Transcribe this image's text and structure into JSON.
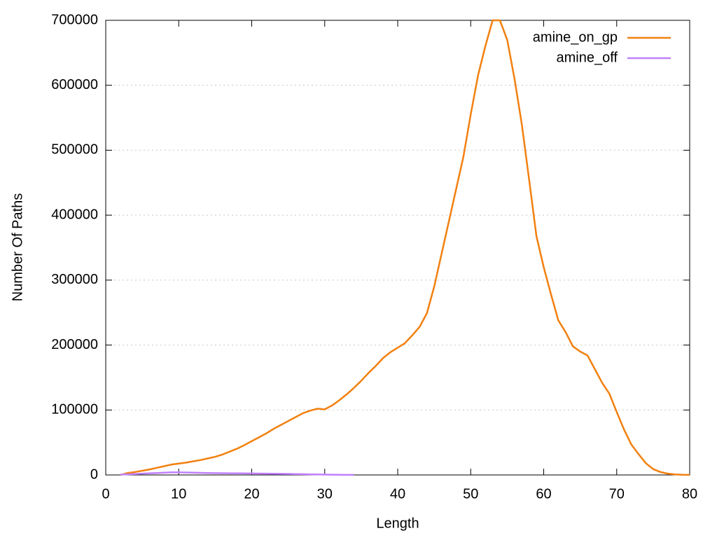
{
  "chart_data": {
    "type": "line",
    "x_label": "Length",
    "y_label": "Number Of Paths",
    "xlim": [
      0,
      80
    ],
    "xticks": [
      0,
      10,
      20,
      30,
      40,
      50,
      60,
      70,
      80
    ],
    "ylim": [
      0,
      700000
    ],
    "yticks": [
      0,
      100000,
      200000,
      300000,
      400000,
      500000,
      600000,
      700000
    ],
    "grid": true,
    "legend": "top-right",
    "series": [
      {
        "name": "amine_on_gp",
        "color": "#f28010",
        "x": [
          2,
          3,
          4,
          5,
          6,
          7,
          8,
          9,
          10,
          11,
          12,
          13,
          14,
          15,
          16,
          17,
          18,
          19,
          20,
          21,
          22,
          23,
          24,
          25,
          26,
          27,
          28,
          29,
          30,
          31,
          32,
          33,
          34,
          35,
          36,
          37,
          38,
          39,
          40,
          41,
          42,
          43,
          44,
          45,
          46,
          47,
          48,
          49,
          50,
          51,
          52,
          53,
          54,
          55,
          56,
          57,
          58,
          59,
          60,
          61,
          62,
          63,
          64,
          65,
          66,
          67,
          68,
          69,
          70,
          71,
          72,
          73,
          74,
          75,
          76,
          77,
          78,
          79,
          80
        ],
        "values": [
          0,
          3000,
          4500,
          6500,
          8500,
          11000,
          13500,
          16000,
          17500,
          19000,
          21000,
          23000,
          25500,
          28000,
          31500,
          36000,
          40500,
          46000,
          52000,
          58000,
          64000,
          71000,
          77000,
          83000,
          89000,
          95000,
          99000,
          102000,
          101000,
          107000,
          115000,
          124000,
          134000,
          145000,
          157000,
          168000,
          180000,
          189000,
          196000,
          203000,
          215000,
          228000,
          249000,
          290000,
          340000,
          390000,
          440000,
          490000,
          555000,
          615000,
          660000,
          700000,
          700000,
          670000,
          610000,
          540000,
          455000,
          368000,
          320000,
          278000,
          238000,
          220000,
          198000,
          190000,
          184000,
          163000,
          142000,
          125000,
          97000,
          70000,
          47000,
          32000,
          18000,
          9000,
          4500,
          2000,
          800,
          300,
          100
        ]
      },
      {
        "name": "amine_off",
        "color": "#c080ff",
        "x": [
          2,
          3,
          4,
          5,
          6,
          7,
          8,
          9,
          10,
          11,
          12,
          13,
          14,
          15,
          16,
          17,
          18,
          19,
          20,
          21,
          22,
          23,
          24,
          25,
          26,
          27,
          28,
          29,
          30,
          31,
          32,
          33,
          34
        ],
        "values": [
          500,
          1000,
          1500,
          2000,
          2500,
          3000,
          3500,
          4000,
          4000,
          3800,
          3500,
          3200,
          3000,
          2800,
          2700,
          2600,
          2500,
          2400,
          2300,
          2200,
          2000,
          1900,
          1800,
          1600,
          1400,
          1200,
          1000,
          800,
          600,
          400,
          300,
          200,
          100
        ]
      }
    ]
  }
}
